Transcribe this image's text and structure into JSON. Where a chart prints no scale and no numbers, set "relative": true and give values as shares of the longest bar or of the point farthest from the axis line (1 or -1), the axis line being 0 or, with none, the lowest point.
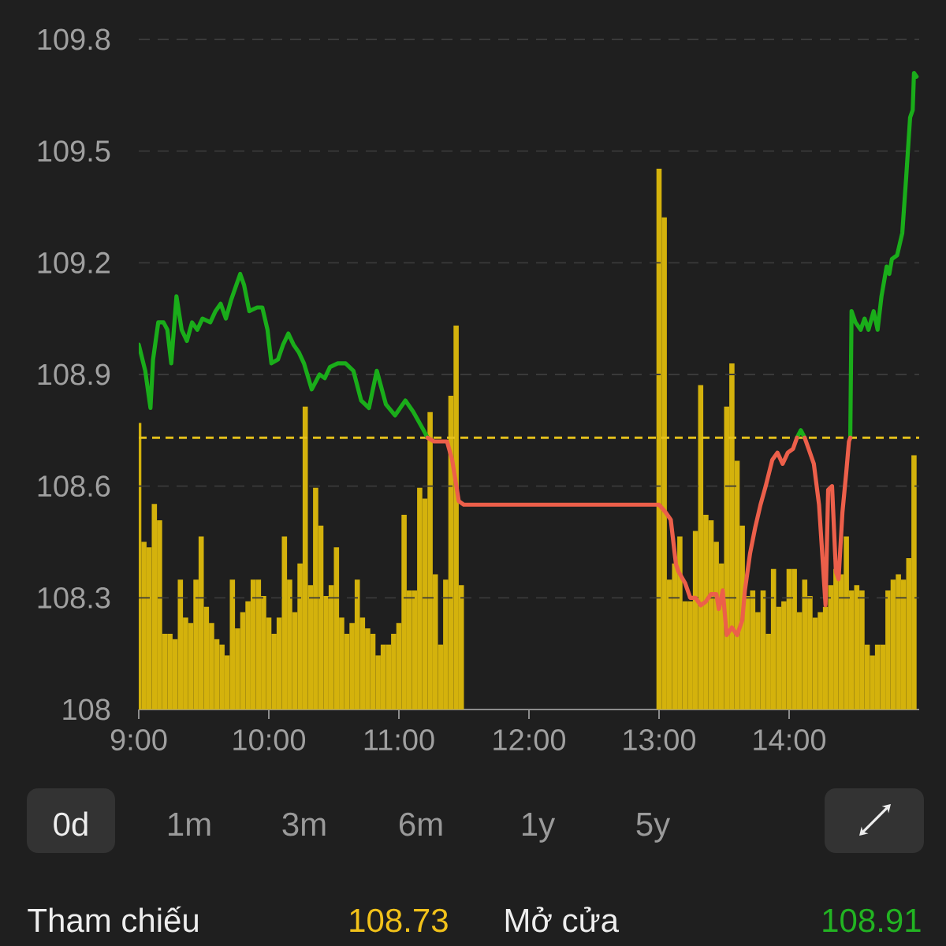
{
  "chart_data": [
    {
      "type": "line",
      "xlim": [
        9,
        15
      ],
      "ylim": [
        108,
        109.8
      ],
      "tick_labels": "y",
      "yticks": [
        108,
        108.3,
        108.6,
        108.9,
        109.2,
        109.5,
        109.8
      ],
      "grid": "y",
      "ref_lines": [
        {
          "axis": "y",
          "value": 108.73,
          "color": "#e3c01c",
          "line_style": "dashed"
        }
      ],
      "x": [
        9,
        9.05,
        9.09,
        9.11,
        9.15,
        9.19,
        9.22,
        9.25,
        9.29,
        9.33,
        9.37,
        9.41,
        9.45,
        9.49,
        9.55,
        9.59,
        9.63,
        9.67,
        9.71,
        9.75,
        9.78,
        9.81,
        9.85,
        9.91,
        9.95,
        9.99,
        10.02,
        10.07,
        10.11,
        10.15,
        10.19,
        10.23,
        10.27,
        10.33,
        10.39,
        10.43,
        10.47,
        10.53,
        10.59,
        10.65,
        10.71,
        10.77,
        10.83,
        10.9,
        10.97,
        11.05,
        11.11,
        11.19,
        11.22,
        11.27,
        11.33,
        11.37,
        11.41,
        11.46,
        11.5,
        13,
        13.05,
        13.09,
        13.13,
        13.15,
        13.2,
        13.24,
        13.28,
        13.32,
        13.36,
        13.4,
        13.44,
        13.46,
        13.49,
        13.52,
        13.56,
        13.6,
        13.64,
        13.66,
        13.7,
        13.74,
        13.78,
        13.82,
        13.87,
        13.91,
        13.95,
        13.99,
        14.03,
        14.06,
        14.09,
        14.12,
        14.15,
        14.19,
        14.23,
        14.26,
        14.28,
        14.3,
        14.33,
        14.36,
        14.38,
        14.41,
        14.44,
        14.46,
        14.47,
        14.48,
        14.51,
        14.55,
        14.58,
        14.61,
        14.65,
        14.68,
        14.71,
        14.75,
        14.77,
        14.79,
        14.83,
        14.87,
        14.9,
        14.93,
        14.95,
        14.96,
        14.98
      ],
      "series": [
        {
          "color": "#1aad1a",
          "values": [
            108.98,
            108.91,
            108.81,
            108.94,
            109.04,
            109.04,
            109.02,
            108.93,
            109.11,
            109.02,
            108.99,
            109.04,
            109.02,
            109.05,
            109.04,
            109.07,
            109.09,
            109.05,
            109.1,
            109.14,
            109.17,
            109.14,
            109.07,
            109.08,
            109.08,
            109.02,
            108.93,
            108.94,
            108.98,
            109.01,
            108.98,
            108.96,
            108.93,
            108.86,
            108.9,
            108.89,
            108.92,
            108.93,
            108.93,
            108.91,
            108.83,
            108.81,
            108.91,
            108.82,
            108.79,
            108.83,
            108.8,
            108.75,
            108.73,
            null,
            null,
            null,
            null,
            null,
            null,
            null,
            null,
            null,
            null,
            null,
            null,
            null,
            null,
            null,
            null,
            null,
            null,
            null,
            null,
            null,
            null,
            null,
            null,
            null,
            null,
            null,
            null,
            null,
            null,
            null,
            null,
            null,
            null,
            108.73,
            108.75,
            108.73,
            null,
            null,
            null,
            null,
            null,
            null,
            null,
            null,
            null,
            null,
            null,
            null,
            108.73,
            109.07,
            109.04,
            109.02,
            109.05,
            109.02,
            109.07,
            109.02,
            109.11,
            109.19,
            109.17,
            109.21,
            109.22,
            109.28,
            109.43,
            109.59,
            109.61,
            109.71,
            109.7
          ]
        },
        {
          "color": "#ec5f4a",
          "values": [
            null,
            null,
            null,
            null,
            null,
            null,
            null,
            null,
            null,
            null,
            null,
            null,
            null,
            null,
            null,
            null,
            null,
            null,
            null,
            null,
            null,
            null,
            null,
            null,
            null,
            null,
            null,
            null,
            null,
            null,
            null,
            null,
            null,
            null,
            null,
            null,
            null,
            null,
            null,
            null,
            null,
            null,
            null,
            null,
            null,
            null,
            null,
            null,
            108.73,
            108.72,
            108.72,
            108.72,
            108.67,
            108.56,
            108.55,
            108.55,
            108.53,
            108.51,
            108.39,
            108.37,
            108.34,
            108.3,
            108.3,
            108.28,
            108.29,
            108.31,
            108.31,
            108.27,
            108.32,
            108.2,
            108.22,
            108.2,
            108.24,
            108.32,
            108.42,
            108.49,
            108.55,
            108.6,
            108.67,
            108.69,
            108.66,
            108.69,
            108.7,
            108.73,
            null,
            108.73,
            108.7,
            108.66,
            108.55,
            108.39,
            108.28,
            108.59,
            108.6,
            108.37,
            108.35,
            108.53,
            108.64,
            108.72,
            108.73,
            null,
            null,
            null,
            null,
            null,
            null,
            null,
            null,
            null,
            null,
            null,
            null,
            null,
            null,
            null,
            null,
            null,
            null
          ]
        }
      ]
    },
    {
      "type": "bar",
      "relative": true,
      "xlim": [
        9,
        15
      ],
      "tick_labels": "x",
      "color": "#d4b20c",
      "xticks": [
        {
          "value": 9,
          "label": "9:00"
        },
        {
          "value": 10,
          "label": "10:00"
        },
        {
          "value": 11,
          "label": "11:00"
        },
        {
          "value": 12,
          "label": "12:00"
        },
        {
          "value": 13,
          "label": "13:00"
        },
        {
          "value": 14,
          "label": "14:00"
        }
      ],
      "x": [
        9,
        9.04,
        9.08,
        9.12,
        9.16,
        9.2,
        9.24,
        9.28,
        9.32,
        9.36,
        9.4,
        9.44,
        9.48,
        9.52,
        9.56,
        9.6,
        9.64,
        9.68,
        9.72,
        9.76,
        9.8,
        9.84,
        9.88,
        9.92,
        9.96,
        10,
        10.04,
        10.08,
        10.12,
        10.16,
        10.2,
        10.24,
        10.28,
        10.32,
        10.36,
        10.4,
        10.44,
        10.48,
        10.52,
        10.56,
        10.6,
        10.64,
        10.68,
        10.72,
        10.76,
        10.8,
        10.84,
        10.88,
        10.92,
        10.96,
        11,
        11.04,
        11.08,
        11.12,
        11.16,
        11.2,
        11.24,
        11.28,
        11.32,
        11.36,
        11.4,
        11.44,
        11.48,
        13,
        13.04,
        13.08,
        13.12,
        13.16,
        13.2,
        13.24,
        13.28,
        13.32,
        13.36,
        13.4,
        13.44,
        13.48,
        13.52,
        13.56,
        13.6,
        13.64,
        13.68,
        13.72,
        13.76,
        13.8,
        13.84,
        13.88,
        13.92,
        13.96,
        14,
        14.04,
        14.08,
        14.12,
        14.16,
        14.2,
        14.24,
        14.28,
        14.32,
        14.36,
        14.4,
        14.44,
        14.48,
        14.52,
        14.56,
        14.6,
        14.64,
        14.68,
        14.72,
        14.76,
        14.8,
        14.84,
        14.88,
        14.92,
        14.96
      ],
      "values": [
        0.53,
        0.31,
        0.3,
        0.38,
        0.35,
        0.14,
        0.14,
        0.13,
        0.24,
        0.17,
        0.16,
        0.24,
        0.32,
        0.19,
        0.16,
        0.13,
        0.12,
        0.1,
        0.24,
        0.15,
        0.18,
        0.2,
        0.24,
        0.24,
        0.21,
        0.17,
        0.14,
        0.17,
        0.32,
        0.24,
        0.18,
        0.27,
        0.56,
        0.23,
        0.41,
        0.34,
        0.21,
        0.23,
        0.3,
        0.17,
        0.14,
        0.16,
        0.24,
        0.17,
        0.15,
        0.14,
        0.1,
        0.12,
        0.12,
        0.14,
        0.16,
        0.36,
        0.22,
        0.22,
        0.41,
        0.39,
        0.55,
        0.25,
        0.12,
        0.24,
        0.58,
        0.71,
        0.23,
        1.0,
        0.91,
        0.24,
        0.27,
        0.32,
        0.2,
        0.2,
        0.33,
        0.6,
        0.36,
        0.35,
        0.31,
        0.27,
        0.56,
        0.64,
        0.46,
        0.34,
        0.21,
        0.22,
        0.18,
        0.22,
        0.14,
        0.26,
        0.19,
        0.2,
        0.26,
        0.26,
        0.18,
        0.24,
        0.21,
        0.17,
        0.18,
        0.19,
        0.23,
        0.26,
        0.25,
        0.32,
        0.22,
        0.23,
        0.22,
        0.12,
        0.1,
        0.12,
        0.12,
        0.22,
        0.24,
        0.25,
        0.24,
        0.28,
        0.47
      ]
    },
    {
      "type": "other",
      "annotations": [
        "0d",
        "1m",
        "3m",
        "6m",
        "1y",
        "5y",
        "Tham chiếu",
        "108.73",
        "Mở cửa",
        "108.91"
      ]
    }
  ]
}
